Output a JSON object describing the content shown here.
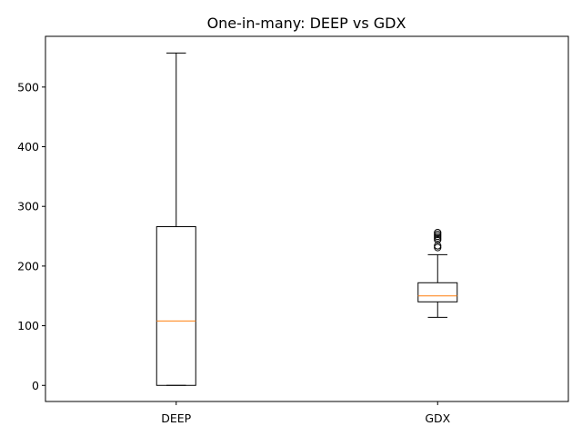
{
  "chart_data": {
    "type": "box",
    "title": "One-in-many: DEEP vs GDX",
    "xlabel": "",
    "ylabel": "",
    "categories": [
      "DEEP",
      "GDX"
    ],
    "yticks": [
      0,
      100,
      200,
      300,
      400,
      500
    ],
    "ytick_labels": [
      "0",
      "100",
      "200",
      "300",
      "400",
      "500"
    ],
    "ylim": [
      -27,
      585
    ],
    "grid": false,
    "boxes": [
      {
        "name": "DEEP",
        "whisker_low": 0,
        "q1": 0,
        "median": 108,
        "q3": 266,
        "whisker_high": 557,
        "outliers": []
      },
      {
        "name": "GDX",
        "whisker_low": 114,
        "q1": 140,
        "median": 150,
        "q3": 172,
        "whisker_high": 219,
        "outliers": [
          231,
          234,
          244,
          247,
          250,
          253,
          256
        ]
      }
    ],
    "colors": {
      "box": "#000000",
      "median": "#ff7f0e",
      "outlier": "#000000"
    }
  }
}
